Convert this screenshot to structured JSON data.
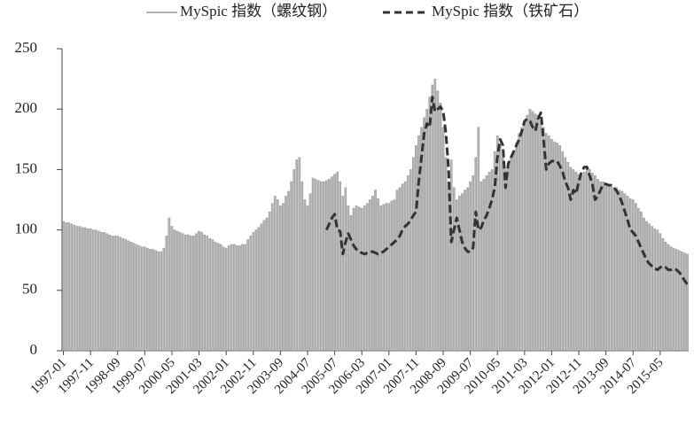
{
  "chart_data": {
    "type": "combo",
    "legend": "top",
    "ylim": [
      0,
      250
    ],
    "yticks": [
      0,
      50,
      100,
      150,
      200,
      250
    ],
    "categories": [
      "1997-01",
      null,
      null,
      null,
      null,
      null,
      null,
      null,
      null,
      null,
      "1997-11",
      null,
      null,
      null,
      null,
      null,
      null,
      null,
      null,
      null,
      "1998-09",
      null,
      null,
      null,
      null,
      null,
      null,
      null,
      null,
      null,
      "1999-07",
      null,
      null,
      null,
      null,
      null,
      null,
      null,
      null,
      null,
      "2000-05",
      null,
      null,
      null,
      null,
      null,
      null,
      null,
      null,
      null,
      "2001-03",
      null,
      null,
      null,
      null,
      null,
      null,
      null,
      null,
      null,
      "2002-01",
      null,
      null,
      null,
      null,
      null,
      null,
      null,
      null,
      null,
      "2002-11",
      null,
      null,
      null,
      null,
      null,
      null,
      null,
      null,
      null,
      "2003-09",
      null,
      null,
      null,
      null,
      null,
      null,
      null,
      null,
      null,
      "2004-07",
      null,
      null,
      null,
      null,
      null,
      null,
      null,
      null,
      null,
      "2005-07",
      null,
      null,
      null,
      null,
      null,
      null,
      null,
      null,
      null,
      "2006-03",
      null,
      null,
      null,
      null,
      null,
      null,
      null,
      null,
      null,
      "2007-01",
      null,
      null,
      null,
      null,
      null,
      null,
      null,
      null,
      null,
      "2007-11",
      null,
      null,
      null,
      null,
      null,
      null,
      null,
      null,
      null,
      "2008-09",
      null,
      null,
      null,
      null,
      null,
      null,
      null,
      null,
      null,
      "2009-07",
      null,
      null,
      null,
      null,
      null,
      null,
      null,
      null,
      null,
      "2010-05",
      null,
      null,
      null,
      null,
      null,
      null,
      null,
      null,
      null,
      "2011-03",
      null,
      null,
      null,
      null,
      null,
      null,
      null,
      null,
      null,
      "2012-01",
      null,
      null,
      null,
      null,
      null,
      null,
      null,
      null,
      null,
      "2012-11",
      null,
      null,
      null,
      null,
      null,
      null,
      null,
      null,
      null,
      "2013-09",
      null,
      null,
      null,
      null,
      null,
      null,
      null,
      null,
      null,
      "2014-07",
      null,
      null,
      null,
      null,
      null,
      null,
      null,
      null,
      null,
      "2015-05",
      null,
      null,
      null,
      null,
      null,
      null,
      null,
      null,
      null,
      null
    ],
    "series": [
      {
        "name": "MySpic 指数（螺纹钢）",
        "type": "bar",
        "color": "#b4b4b4",
        "values": [
          107,
          106,
          106,
          105,
          104,
          103,
          103,
          102,
          102,
          101,
          101,
          100,
          100,
          99,
          98,
          98,
          97,
          96,
          95,
          95,
          95,
          94,
          93,
          92,
          91,
          90,
          89,
          88,
          87,
          86,
          86,
          85,
          84,
          84,
          83,
          82,
          82,
          85,
          95,
          110,
          103,
          100,
          99,
          98,
          97,
          96,
          96,
          95,
          95,
          97,
          99,
          98,
          96,
          95,
          93,
          92,
          90,
          89,
          88,
          86,
          85,
          87,
          88,
          88,
          87,
          87,
          88,
          88,
          92,
          95,
          98,
          100,
          102,
          105,
          108,
          110,
          115,
          122,
          128,
          125,
          120,
          122,
          128,
          132,
          140,
          150,
          158,
          160,
          140,
          125,
          120,
          130,
          143,
          142,
          141,
          140,
          140,
          141,
          142,
          144,
          146,
          148,
          140,
          128,
          135,
          120,
          112,
          118,
          120,
          119,
          118,
          120,
          122,
          125,
          128,
          133,
          126,
          120,
          121,
          122,
          122,
          124,
          125,
          133,
          135,
          138,
          140,
          145,
          150,
          160,
          170,
          178,
          185,
          193,
          200,
          210,
          220,
          225,
          215,
          205,
          185,
          160,
          140,
          158,
          135,
          125,
          128,
          130,
          133,
          135,
          140,
          145,
          160,
          185,
          140,
          142,
          145,
          148,
          150,
          165,
          178,
          170,
          160,
          150,
          155,
          160,
          165,
          172,
          180,
          185,
          190,
          195,
          200,
          198,
          196,
          195,
          190,
          185,
          180,
          178,
          175,
          173,
          172,
          170,
          165,
          160,
          156,
          152,
          150,
          148,
          146,
          145,
          148,
          152,
          150,
          147,
          145,
          142,
          140,
          140,
          138,
          137,
          136,
          135,
          135,
          133,
          132,
          130,
          128,
          126,
          125,
          122,
          118,
          115,
          110,
          107,
          105,
          103,
          101,
          100,
          97,
          93,
          90,
          88,
          86,
          85,
          84,
          83,
          82,
          81,
          80
        ]
      },
      {
        "name": "MySpic 指数（铁矿石）",
        "type": "line",
        "color": "#333333",
        "values": [
          null,
          null,
          null,
          null,
          null,
          null,
          null,
          null,
          null,
          null,
          null,
          null,
          null,
          null,
          null,
          null,
          null,
          null,
          null,
          null,
          null,
          null,
          null,
          null,
          null,
          null,
          null,
          null,
          null,
          null,
          null,
          null,
          null,
          null,
          null,
          null,
          null,
          null,
          null,
          null,
          null,
          null,
          null,
          null,
          null,
          null,
          null,
          null,
          null,
          null,
          null,
          null,
          null,
          null,
          null,
          null,
          null,
          null,
          null,
          null,
          null,
          null,
          null,
          null,
          null,
          null,
          null,
          null,
          null,
          null,
          null,
          null,
          null,
          null,
          null,
          null,
          null,
          null,
          null,
          null,
          null,
          null,
          null,
          null,
          null,
          null,
          null,
          null,
          null,
          null,
          null,
          null,
          null,
          null,
          null,
          null,
          null,
          100,
          105,
          110,
          113,
          100,
          99,
          80,
          90,
          97,
          92,
          87,
          84,
          82,
          81,
          80,
          81,
          82,
          82,
          81,
          80,
          81,
          82,
          84,
          86,
          88,
          90,
          92,
          95,
          100,
          103,
          105,
          108,
          112,
          115,
          140,
          160,
          180,
          188,
          185,
          210,
          198,
          200,
          202,
          198,
          180,
          150,
          90,
          100,
          110,
          100,
          90,
          85,
          82,
          82,
          85,
          115,
          100,
          102,
          108,
          112,
          118,
          125,
          135,
          160,
          175,
          170,
          135,
          155,
          160,
          165,
          170,
          175,
          182,
          190,
          192,
          190,
          185,
          182,
          192,
          197,
          175,
          150,
          155,
          157,
          157,
          157,
          153,
          148,
          140,
          135,
          125,
          133,
          130,
          140,
          148,
          152,
          152,
          145,
          138,
          125,
          128,
          133,
          138,
          138,
          137,
          137,
          135,
          132,
          128,
          122,
          115,
          108,
          100,
          98,
          95,
          90,
          85,
          80,
          75,
          72,
          70,
          68,
          67,
          69,
          70,
          69,
          67,
          67,
          68,
          67,
          65,
          62,
          58,
          55
        ]
      }
    ]
  }
}
